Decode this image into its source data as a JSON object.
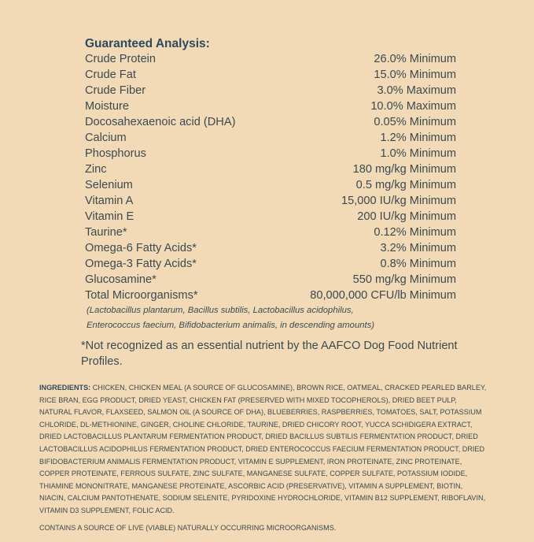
{
  "guaranteed_analysis": {
    "title": "Guaranteed Analysis:",
    "rows": [
      {
        "name": "Crude Protein",
        "value": "26.0% Minimum"
      },
      {
        "name": "Crude Fat",
        "value": "15.0% Minimum"
      },
      {
        "name": "Crude Fiber",
        "value": "3.0% Maximum"
      },
      {
        "name": "Moisture",
        "value": "10.0% Maximum"
      },
      {
        "name": "Docosahexaenoic acid (DHA)",
        "value": "0.05% Minimum"
      },
      {
        "name": "Calcium",
        "value": "1.2% Minimum"
      },
      {
        "name": "Phosphorus",
        "value": "1.0% Minimum"
      },
      {
        "name": "Zinc",
        "value": "180 mg/kg Minimum"
      },
      {
        "name": "Selenium",
        "value": "0.5 mg/kg Minimum"
      },
      {
        "name": "Vitamin A",
        "value": "15,000 IU/kg Minimum"
      },
      {
        "name": "Vitamin E",
        "value": "200 IU/kg Minimum"
      },
      {
        "name": "Taurine*",
        "value": "0.12% Minimum"
      },
      {
        "name": "Omega-6 Fatty Acids*",
        "value": "3.2% Minimum"
      },
      {
        "name": "Omega-3 Fatty Acids*",
        "value": "0.8% Minimum"
      },
      {
        "name": "Glucosamine*",
        "value": "550 mg/kg Minimum"
      },
      {
        "name": "Total Microorganisms*",
        "value": "80,000,000 CFU/lb Minimum"
      }
    ],
    "footnote_line1": "(Lactobacillus plantarum, Bacillus subtilis, Lactobacillus acidophilus,",
    "footnote_line2": "Enterococcus faecium, Bifidobacterium animalis, in descending amounts)"
  },
  "note": "*Not recognized as an essential nutrient by the AAFCO Dog Food Nutrient Profiles.",
  "ingredients": {
    "label": "INGREDIENTS:",
    "text": "CHICKEN, CHICKEN MEAL (A SOURCE OF GLUCOSAMINE), BROWN RICE, OATMEAL, CRACKED PEARLED BARLEY, RICE BRAN, EGG PRODUCT, DRIED YEAST, CHICKEN FAT (PRESERVED WITH MIXED TOCOPHEROLS), DRIED BEET PULP, NATURAL FLAVOR, FLAXSEED, SALMON OIL (A SOURCE OF DHA), BLUEBERRIES, RASPBERRIES, TOMATOES, SALT, POTASSIUM CHLORIDE, DL-METHIONINE, GINGER, CHOLINE CHLORIDE, TAURINE, DRIED CHICORY ROOT, YUCCA SCHIDIGERA EXTRACT, DRIED LACTOBACILLUS PLANTARUM FERMENTATION PRODUCT, DRIED BACILLUS SUBTILIS FERMENTATION PRODUCT, DRIED LACTOBACILLUS ACIDOPHILUS FERMENTATION PRODUCT, DRIED ENTEROCOCCUS FAECIUM FERMENTATION PRODUCT, DRIED BIFIDOBACTERIUM ANIMALIS FERMENTATION PRODUCT, VITAMIN E SUPPLEMENT, IRON PROTEINATE, ZINC PROTEINATE, COPPER PROTEINATE, FERROUS SULFATE, ZINC SULFATE, MANGANESE SULFATE, COPPER SULFATE, POTASSIUM IODIDE, THIAMINE MONONITRATE, MANGANESE PROTEINATE, ASCORBIC ACID (PRESERVATIVE), VITAMIN A SUPPLEMENT, BIOTIN, NIACIN, CALCIUM PANTOTHENATE, SODIUM SELENITE, PYRIDOXINE HYDROCHLORIDE, VITAMIN B12 SUPPLEMENT, RIBOFLAVIN, VITAMIN D3 SUPPLEMENT, FOLIC ACID."
  },
  "live_statement": "CONTAINS A SOURCE OF LIVE (VIABLE) NATURALLY OCCURRING MICROORGANISMS."
}
